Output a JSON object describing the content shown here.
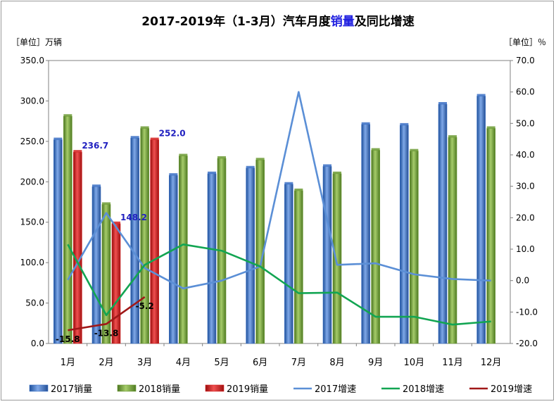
{
  "chart_data": {
    "type": "bar",
    "title_prefix": "2017-2019年（1-3月）汽车月度",
    "title_highlight": "销量",
    "title_suffix": "及同比增速",
    "accent_color": "#2020e0",
    "left_unit_label": "［单位］万辆",
    "right_unit_label": "［单位］％",
    "categories": [
      "1月",
      "2月",
      "3月",
      "4月",
      "5月",
      "6月",
      "7月",
      "8月",
      "9月",
      "10月",
      "11月",
      "12月"
    ],
    "left_axis": {
      "min": 0,
      "max": 350,
      "step": 50,
      "tick_labels": [
        "0.0",
        "50.0",
        "100.0",
        "150.0",
        "200.0",
        "250.0",
        "300.0",
        "350.0"
      ]
    },
    "right_axis": {
      "min": -20,
      "max": 70,
      "step": 10,
      "tick_labels": [
        "-20.0",
        "-10.0",
        "0.0",
        "10.0",
        "20.0",
        "30.0",
        "40.0",
        "50.0",
        "60.0",
        "70.0"
      ]
    },
    "bar_series": [
      {
        "name": "2017销量",
        "color": "#3a6fc4",
        "values": [
          252,
          194,
          254,
          208,
          210,
          217,
          197,
          219,
          271,
          270,
          296,
          306
        ]
      },
      {
        "name": "2018销量",
        "color": "#6b9a32",
        "values": [
          281,
          172,
          266,
          232,
          229,
          227,
          189,
          210,
          239,
          238,
          255,
          266
        ]
      },
      {
        "name": "2019销量",
        "color": "#d42020",
        "values": [
          236.7,
          148.2,
          252.0
        ]
      }
    ],
    "line_series": [
      {
        "name": "2017增速",
        "color": "#5b8fd6",
        "values": [
          0.2,
          21.5,
          4.0,
          -2.5,
          0.0,
          4.5,
          60.0,
          5.0,
          5.5,
          2.0,
          0.5,
          0.0
        ]
      },
      {
        "name": "2018增速",
        "color": "#12a552",
        "values": [
          11.5,
          -11.0,
          5.0,
          11.5,
          9.5,
          4.5,
          -4.0,
          -3.8,
          -11.5,
          -11.5,
          -14.0,
          -13.0
        ]
      },
      {
        "name": "2019增速",
        "color": "#a01818",
        "values": [
          -15.8,
          -13.8,
          -5.2
        ]
      }
    ],
    "bar_labels": [
      {
        "series": 2,
        "index": 0,
        "text": "236.7",
        "color": "#2020c0"
      },
      {
        "series": 2,
        "index": 1,
        "text": "148.2",
        "color": "#2020c0"
      },
      {
        "series": 2,
        "index": 2,
        "text": "252.0",
        "color": "#2020c0"
      }
    ],
    "line_labels": [
      {
        "series": 2,
        "index": 0,
        "text": "-15.8",
        "color": "#000000"
      },
      {
        "series": 2,
        "index": 1,
        "text": "-13.8",
        "color": "#000000"
      },
      {
        "series": 2,
        "index": 2,
        "text": "-5.2",
        "color": "#000000"
      }
    ],
    "legend_position": "bottom",
    "grid": false
  }
}
